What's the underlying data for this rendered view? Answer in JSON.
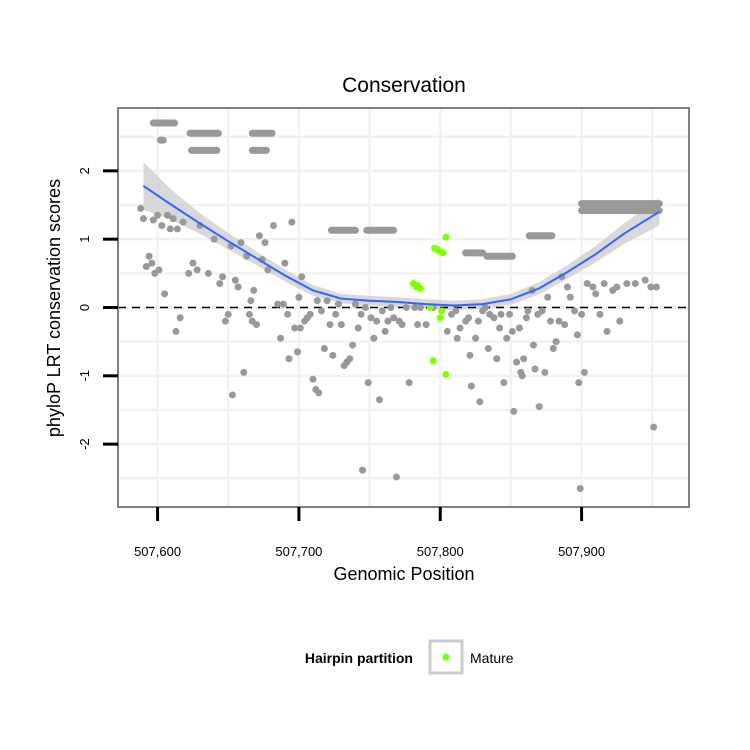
{
  "chart_data": {
    "type": "scatter",
    "title": "Conservation",
    "xlabel": "Genomic Position",
    "ylabel": "phyloP LRT conservation scores",
    "xlim": [
      507572,
      507976
    ],
    "ylim": [
      -2.92,
      2.92
    ],
    "x_ticks": [
      {
        "value": 507600,
        "label": "507,600"
      },
      {
        "value": 507700,
        "label": "507,700"
      },
      {
        "value": 507800,
        "label": "507,800"
      },
      {
        "value": 507900,
        "label": "507,900"
      }
    ],
    "y_ticks": [
      {
        "value": -2,
        "label": "-2"
      },
      {
        "value": -1,
        "label": "-1"
      },
      {
        "value": 0,
        "label": "0"
      },
      {
        "value": 1,
        "label": "1"
      },
      {
        "value": 2,
        "label": "2"
      }
    ],
    "reference_line": {
      "y": 0,
      "style": "dashed"
    },
    "grid": true,
    "colors": {
      "points": "#999999",
      "mature": "#7fff00",
      "smooth": "#3366ff",
      "ribbon": "#cccccc",
      "panel_border": "#808080",
      "grid": "#f2f2f2"
    },
    "legend": {
      "title": "Hairpin partition",
      "position": "bottom",
      "entries": [
        {
          "label": "Mature",
          "color": "#7fff00"
        }
      ]
    },
    "series": [
      {
        "points": [
          [
            507588,
            1.45
          ],
          [
            507590,
            1.3
          ],
          [
            507592,
            0.6
          ],
          [
            507594,
            0.75
          ],
          [
            507596,
            0.65
          ],
          [
            507597,
            1.28
          ],
          [
            507598,
            0.5
          ],
          [
            507600,
            1.35
          ],
          [
            507601,
            0.55
          ],
          [
            507603,
            1.2
          ],
          [
            507605,
            0.2
          ],
          [
            507607,
            1.35
          ],
          [
            507609,
            1.15
          ],
          [
            507611,
            1.3
          ],
          [
            507613,
            -0.35
          ],
          [
            507614,
            1.15
          ],
          [
            507616,
            -0.15
          ],
          [
            507618,
            1.25
          ],
          [
            507622,
            0.5
          ],
          [
            507625,
            0.65
          ],
          [
            507628,
            0.55
          ],
          [
            507630,
            1.2
          ],
          [
            507636,
            0.5
          ],
          [
            507640,
            1.0
          ],
          [
            507644,
            0.35
          ],
          [
            507646,
            0.45
          ],
          [
            507648,
            -0.2
          ],
          [
            507650,
            -0.1
          ],
          [
            507652,
            0.9
          ],
          [
            507653,
            -1.28
          ],
          [
            507655,
            0.4
          ],
          [
            507657,
            0.3
          ],
          [
            507659,
            0.95
          ],
          [
            507661,
            -0.95
          ],
          [
            507663,
            0.75
          ],
          [
            507665,
            -0.1
          ],
          [
            507666,
            0.1
          ],
          [
            507667,
            -0.2
          ],
          [
            507668,
            0.25
          ],
          [
            507670,
            -0.25
          ],
          [
            507672,
            1.05
          ],
          [
            507674,
            0.7
          ],
          [
            507676,
            0.95
          ],
          [
            507678,
            0.55
          ],
          [
            507682,
            1.2
          ],
          [
            507685,
            0.05
          ],
          [
            507687,
            -0.45
          ],
          [
            507689,
            0.05
          ],
          [
            507690,
            0.65
          ],
          [
            507692,
            -0.1
          ],
          [
            507693,
            -0.75
          ],
          [
            507695,
            1.25
          ],
          [
            507697,
            -0.3
          ],
          [
            507699,
            -0.65
          ],
          [
            507700,
            0.15
          ],
          [
            507701,
            -0.3
          ],
          [
            507702,
            0.45
          ],
          [
            507704,
            -0.2
          ],
          [
            507706,
            -0.15
          ],
          [
            507708,
            -0.1
          ],
          [
            507710,
            -1.05
          ],
          [
            507712,
            -1.2
          ],
          [
            507713,
            0.1
          ],
          [
            507714,
            -1.25
          ],
          [
            507716,
            -0.05
          ],
          [
            507718,
            -0.6
          ],
          [
            507720,
            0.1
          ],
          [
            507722,
            -0.25
          ],
          [
            507724,
            -0.7
          ],
          [
            507726,
            -0.1
          ],
          [
            507728,
            0.05
          ],
          [
            507730,
            -0.25
          ],
          [
            507732,
            -0.85
          ],
          [
            507734,
            -0.8
          ],
          [
            507736,
            -0.75
          ],
          [
            507738,
            -0.55
          ],
          [
            507740,
            0.05
          ],
          [
            507742,
            -0.3
          ],
          [
            507744,
            -0.1
          ],
          [
            507745,
            -2.38
          ],
          [
            507747,
            0.0
          ],
          [
            507749,
            -1.1
          ],
          [
            507751,
            -0.15
          ],
          [
            507753,
            -0.45
          ],
          [
            507755,
            -0.2
          ],
          [
            507757,
            -1.35
          ],
          [
            507759,
            -0.05
          ],
          [
            507761,
            -0.35
          ],
          [
            507763,
            -0.2
          ],
          [
            507765,
            0.0
          ],
          [
            507767,
            -0.15
          ],
          [
            507769,
            -2.48
          ],
          [
            507771,
            -0.2
          ],
          [
            507773,
            -0.25
          ],
          [
            507776,
            0.0
          ],
          [
            507778,
            -1.1
          ],
          [
            507782,
            0.0
          ],
          [
            507784,
            -0.25
          ],
          [
            507786,
            0.0
          ],
          [
            507790,
            -0.25
          ],
          [
            507795,
            0.0
          ],
          [
            507805,
            -0.35
          ],
          [
            507808,
            -0.1
          ],
          [
            507811,
            -0.05
          ],
          [
            507812,
            -0.45
          ],
          [
            507814,
            -0.3
          ],
          [
            507818,
            -0.2
          ],
          [
            507820,
            -0.15
          ],
          [
            507821,
            -0.7
          ],
          [
            507822,
            -1.15
          ],
          [
            507825,
            -0.45
          ],
          [
            507827,
            -0.2
          ],
          [
            507828,
            -1.38
          ],
          [
            507830,
            -0.05
          ],
          [
            507832,
            0.0
          ],
          [
            507834,
            -0.6
          ],
          [
            507835,
            -0.1
          ],
          [
            507838,
            -0.15
          ],
          [
            507840,
            -0.75
          ],
          [
            507842,
            -0.3
          ],
          [
            507843,
            -0.1
          ],
          [
            507845,
            -1.1
          ],
          [
            507847,
            -0.45
          ],
          [
            507849,
            -0.1
          ],
          [
            507851,
            -0.35
          ],
          [
            507852,
            -1.52
          ],
          [
            507854,
            -0.8
          ],
          [
            507856,
            -0.3
          ],
          [
            507857,
            -0.95
          ],
          [
            507858,
            -1.0
          ],
          [
            507859,
            -0.75
          ],
          [
            507861,
            -0.15
          ],
          [
            507862,
            -0.05
          ],
          [
            507865,
            0.25
          ],
          [
            507866,
            -0.55
          ],
          [
            507867,
            -0.9
          ],
          [
            507869,
            -0.1
          ],
          [
            507870,
            -1.45
          ],
          [
            507872,
            -0.05
          ],
          [
            507874,
            -0.95
          ],
          [
            507876,
            0.15
          ],
          [
            507878,
            -0.2
          ],
          [
            507880,
            -0.6
          ],
          [
            507882,
            -0.5
          ],
          [
            507884,
            -0.2
          ],
          [
            507886,
            0.45
          ],
          [
            507888,
            -0.25
          ],
          [
            507890,
            0.3
          ],
          [
            507892,
            0.15
          ],
          [
            507895,
            -0.05
          ],
          [
            507897,
            -0.4
          ],
          [
            507898,
            -1.1
          ],
          [
            507899,
            -2.65
          ],
          [
            507900,
            -0.1
          ],
          [
            507902,
            -0.95
          ],
          [
            507904,
            0.35
          ],
          [
            507908,
            0.3
          ],
          [
            507910,
            0.2
          ],
          [
            507913,
            -0.1
          ],
          [
            507916,
            0.35
          ],
          [
            507918,
            -0.35
          ],
          [
            507922,
            0.25
          ],
          [
            507925,
            0.3
          ],
          [
            507927,
            -0.2
          ],
          [
            507932,
            0.35
          ],
          [
            507938,
            0.35
          ],
          [
            507945,
            0.4
          ],
          [
            507949,
            0.3
          ],
          [
            507951,
            -1.75
          ],
          [
            507953,
            0.3
          ]
        ],
        "segments": [
          {
            "x_from": 507597,
            "x_to": 507612,
            "y": 2.7
          },
          {
            "x_from": 507602,
            "x_to": 507604,
            "y": 2.45
          },
          {
            "x_from": 507623,
            "x_to": 507643,
            "y": 2.55
          },
          {
            "x_from": 507624,
            "x_to": 507642,
            "y": 2.3
          },
          {
            "x_from": 507667,
            "x_to": 507681,
            "y": 2.55
          },
          {
            "x_from": 507667,
            "x_to": 507677,
            "y": 2.3
          },
          {
            "x_from": 507723,
            "x_to": 507740,
            "y": 1.13
          },
          {
            "x_from": 507748,
            "x_to": 507767,
            "y": 1.13
          },
          {
            "x_from": 507818,
            "x_to": 507830,
            "y": 0.8
          },
          {
            "x_from": 507833,
            "x_to": 507851,
            "y": 0.75
          },
          {
            "x_from": 507863,
            "x_to": 507879,
            "y": 1.05
          },
          {
            "x_from": 507900,
            "x_to": 507955,
            "y": 1.52
          },
          {
            "x_from": 507900,
            "x_to": 507955,
            "y": 1.42
          }
        ]
      },
      {
        "name": "Mature",
        "color": "#7fff00",
        "points": [
          [
            507781,
            0.35
          ],
          [
            507783,
            0.3
          ],
          [
            507784,
            0.32
          ],
          [
            507786,
            0.28
          ],
          [
            507793,
            0.0
          ],
          [
            507795,
            -0.78
          ],
          [
            507796,
            0.87
          ],
          [
            507798,
            0.85
          ],
          [
            507799,
            0.83
          ],
          [
            507800,
            -0.15
          ],
          [
            507801,
            -0.05
          ],
          [
            507802,
            0.8
          ],
          [
            507804,
            1.03
          ],
          [
            507804,
            -0.98
          ]
        ]
      }
    ],
    "smooth": {
      "x": [
        507590,
        507610,
        507630,
        507650,
        507670,
        507690,
        507710,
        507730,
        507750,
        507770,
        507790,
        507810,
        507830,
        507850,
        507870,
        507890,
        507910,
        507930,
        507955
      ],
      "y": [
        1.78,
        1.5,
        1.23,
        0.97,
        0.72,
        0.47,
        0.25,
        0.13,
        0.1,
        0.08,
        0.05,
        0.03,
        0.05,
        0.12,
        0.28,
        0.52,
        0.78,
        1.08,
        1.4
      ],
      "se": [
        0.35,
        0.22,
        0.15,
        0.12,
        0.1,
        0.09,
        0.08,
        0.07,
        0.07,
        0.07,
        0.07,
        0.07,
        0.07,
        0.08,
        0.09,
        0.1,
        0.12,
        0.15,
        0.2
      ]
    }
  }
}
